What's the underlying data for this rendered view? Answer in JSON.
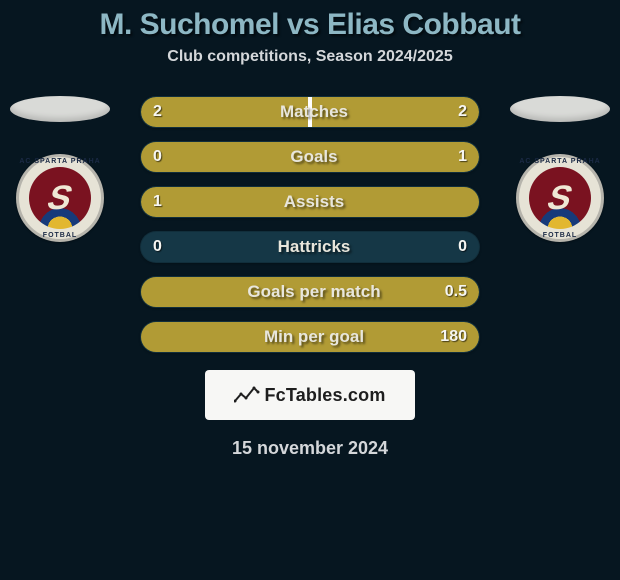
{
  "colors": {
    "background": "#061620",
    "title": "#8db7c4",
    "subtitle": "#d4d7da",
    "row_bg": "#153746",
    "bar_fill": "#b19b35",
    "value_text": "#f6f6f2",
    "label_text": "#e8e6dc",
    "ellipse": "#d9dad7",
    "source_bg": "#f7f7f5",
    "source_text": "#1e1e1e",
    "date_text": "#d4d7da",
    "logo_outer_border": "#b6b4ac",
    "logo_ring_bg": "#e6e3d6",
    "logo_ring_text": "#1b2a45",
    "logo_center_bg": "#7a1220",
    "logo_center_accent_blue": "#173a7a",
    "logo_center_accent_yellow": "#e2b72f",
    "logo_letter": "#efe7d4",
    "row_value_fontsize": 16,
    "row_label_fontsize": 17,
    "title_fontsize": 30,
    "subtitle_fontsize": 16,
    "date_fontsize": 18
  },
  "title": "M. Suchomel vs Elias Cobbaut",
  "subtitle": "Club competitions, Season 2024/2025",
  "left_club_text_top": "AC SPARTA PRAHA",
  "left_club_text_bottom": "FOTBAL",
  "right_club_text_top": "AC SPARTA PRAHA",
  "right_club_text_bottom": "FOTBAL",
  "rows": [
    {
      "label": "Matches",
      "left": "2",
      "right": "2",
      "left_pct": 50,
      "right_pct": 50
    },
    {
      "label": "Goals",
      "left": "0",
      "right": "1",
      "left_pct": 0,
      "right_pct": 100
    },
    {
      "label": "Assists",
      "left": "1",
      "right": "",
      "left_pct": 100,
      "right_pct": 0
    },
    {
      "label": "Hattricks",
      "left": "0",
      "right": "0",
      "left_pct": 0,
      "right_pct": 0
    },
    {
      "label": "Goals per match",
      "left": "",
      "right": "0.5",
      "left_pct": 0,
      "right_pct": 100
    },
    {
      "label": "Min per goal",
      "left": "",
      "right": "180",
      "left_pct": 0,
      "right_pct": 100
    }
  ],
  "source_label": "FcTables.com",
  "date": "15 november 2024"
}
